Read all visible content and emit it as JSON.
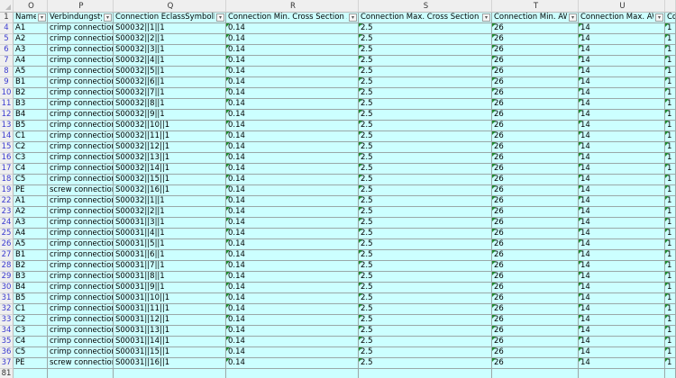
{
  "columns": [
    "O",
    "P",
    "Q",
    "R",
    "S",
    "T",
    "U",
    ""
  ],
  "header_row_number": "1",
  "headers": [
    "Name",
    "Verbindungstyp",
    "Connection EclassSymbolMap",
    "Connection Min. Cross Section Area",
    "Connection Max. Cross Section Area",
    "Connection Min. AWG",
    "Connection Max. AWG",
    "Co"
  ],
  "rows": [
    [
      "4",
      "A1",
      "crimp connection",
      "S00032||1||1",
      "0.14",
      "2.5",
      "26",
      "14",
      "1"
    ],
    [
      "5",
      "A2",
      "crimp connection",
      "S00032||2||1",
      "0.14",
      "2.5",
      "26",
      "14",
      "1"
    ],
    [
      "6",
      "A3",
      "crimp connection",
      "S00032||3||1",
      "0.14",
      "2.5",
      "26",
      "14",
      "1"
    ],
    [
      "7",
      "A4",
      "crimp connection",
      "S00032||4||1",
      "0.14",
      "2.5",
      "26",
      "14",
      "1"
    ],
    [
      "8",
      "A5",
      "crimp connection",
      "S00032||5||1",
      "0.14",
      "2.5",
      "26",
      "14",
      "1"
    ],
    [
      "9",
      "B1",
      "crimp connection",
      "S00032||6||1",
      "0.14",
      "2.5",
      "26",
      "14",
      "1"
    ],
    [
      "10",
      "B2",
      "crimp connection",
      "S00032||7||1",
      "0.14",
      "2.5",
      "26",
      "14",
      "1"
    ],
    [
      "11",
      "B3",
      "crimp connection",
      "S00032||8||1",
      "0.14",
      "2.5",
      "26",
      "14",
      "1"
    ],
    [
      "12",
      "B4",
      "crimp connection",
      "S00032||9||1",
      "0.14",
      "2.5",
      "26",
      "14",
      "1"
    ],
    [
      "13",
      "B5",
      "crimp connection",
      "S00032||10||1",
      "0.14",
      "2.5",
      "26",
      "14",
      "1"
    ],
    [
      "14",
      "C1",
      "crimp connection",
      "S00032||11||1",
      "0.14",
      "2.5",
      "26",
      "14",
      "1"
    ],
    [
      "15",
      "C2",
      "crimp connection",
      "S00032||12||1",
      "0.14",
      "2.5",
      "26",
      "14",
      "1"
    ],
    [
      "16",
      "C3",
      "crimp connection",
      "S00032||13||1",
      "0.14",
      "2.5",
      "26",
      "14",
      "1"
    ],
    [
      "17",
      "C4",
      "crimp connection",
      "S00032||14||1",
      "0.14",
      "2.5",
      "26",
      "14",
      "1"
    ],
    [
      "18",
      "C5",
      "crimp connection",
      "S00032||15||1",
      "0.14",
      "2.5",
      "26",
      "14",
      "1"
    ],
    [
      "19",
      "PE",
      "screw connection",
      "S00032||16||1",
      "0.14",
      "2.5",
      "26",
      "14",
      "1"
    ],
    [
      "22",
      "A1",
      "crimp connection",
      "S00032||1||1",
      "0.14",
      "2.5",
      "26",
      "14",
      "1"
    ],
    [
      "23",
      "A2",
      "crimp connection",
      "S00032||2||1",
      "0.14",
      "2.5",
      "26",
      "14",
      "1"
    ],
    [
      "24",
      "A3",
      "crimp connection",
      "S00031||3||1",
      "0.14",
      "2.5",
      "26",
      "14",
      "1"
    ],
    [
      "25",
      "A4",
      "crimp connection",
      "S00031||4||1",
      "0.14",
      "2.5",
      "26",
      "14",
      "1"
    ],
    [
      "26",
      "A5",
      "crimp connection",
      "S00031||5||1",
      "0.14",
      "2.5",
      "26",
      "14",
      "1"
    ],
    [
      "27",
      "B1",
      "crimp connection",
      "S00031||6||1",
      "0.14",
      "2.5",
      "26",
      "14",
      "1"
    ],
    [
      "28",
      "B2",
      "crimp connection",
      "S00031||7||1",
      "0.14",
      "2.5",
      "26",
      "14",
      "1"
    ],
    [
      "29",
      "B3",
      "crimp connection",
      "S00031||8||1",
      "0.14",
      "2.5",
      "26",
      "14",
      "1"
    ],
    [
      "30",
      "B4",
      "crimp connection",
      "S00031||9||1",
      "0.14",
      "2.5",
      "26",
      "14",
      "1"
    ],
    [
      "31",
      "B5",
      "crimp connection",
      "S00031||10||1",
      "0.14",
      "2.5",
      "26",
      "14",
      "1"
    ],
    [
      "32",
      "C1",
      "crimp connection",
      "S00031||11||1",
      "0.14",
      "2.5",
      "26",
      "14",
      "1"
    ],
    [
      "33",
      "C2",
      "crimp connection",
      "S00031||12||1",
      "0.14",
      "2.5",
      "26",
      "14",
      "1"
    ],
    [
      "34",
      "C3",
      "crimp connection",
      "S00031||13||1",
      "0.14",
      "2.5",
      "26",
      "14",
      "1"
    ],
    [
      "35",
      "C4",
      "crimp connection",
      "S00031||14||1",
      "0.14",
      "2.5",
      "26",
      "14",
      "1"
    ],
    [
      "36",
      "C5",
      "crimp connection",
      "S00031||15||1",
      "0.14",
      "2.5",
      "26",
      "14",
      "1"
    ],
    [
      "37",
      "PE",
      "screw connection",
      "S00031||16||1",
      "0.14",
      "2.5",
      "26",
      "14",
      "1"
    ]
  ],
  "last_row_number": "81",
  "colors": {
    "cell_fill": "#ccffff",
    "filtered_row_number": "#3c3cd0",
    "number_as_text_flag": "#1f8a2f"
  }
}
